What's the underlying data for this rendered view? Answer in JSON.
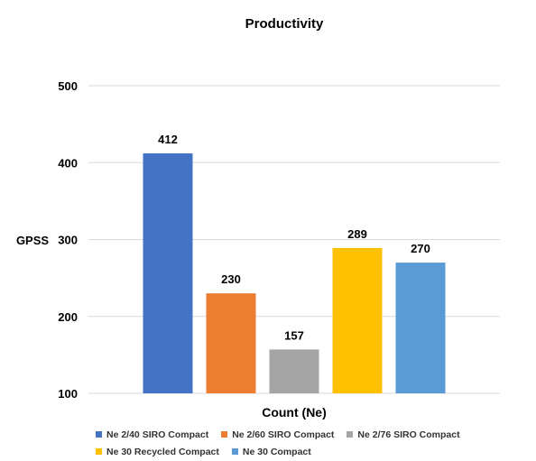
{
  "chart_data": {
    "type": "bar",
    "title": "Productivity",
    "xlabel": "Count (Ne)",
    "ylabel": "GPSS",
    "ylim": [
      100,
      500
    ],
    "yticks": [
      100,
      200,
      300,
      400,
      500
    ],
    "grid": true,
    "legend_position": "bottom",
    "series": [
      {
        "name": "Ne 2/40 SIRO Compact",
        "value": 412,
        "color": "#4472C4"
      },
      {
        "name": "Ne 2/60 SIRO Compact",
        "value": 230,
        "color": "#ED7D31"
      },
      {
        "name": "Ne 2/76 SIRO Compact",
        "value": 157,
        "color": "#A5A5A5"
      },
      {
        "name": "Ne 30 Recycled Compact",
        "value": 289,
        "color": "#FFC000"
      },
      {
        "name": "Ne 30 Compact",
        "value": 270,
        "color": "#5B9BD5"
      }
    ]
  }
}
